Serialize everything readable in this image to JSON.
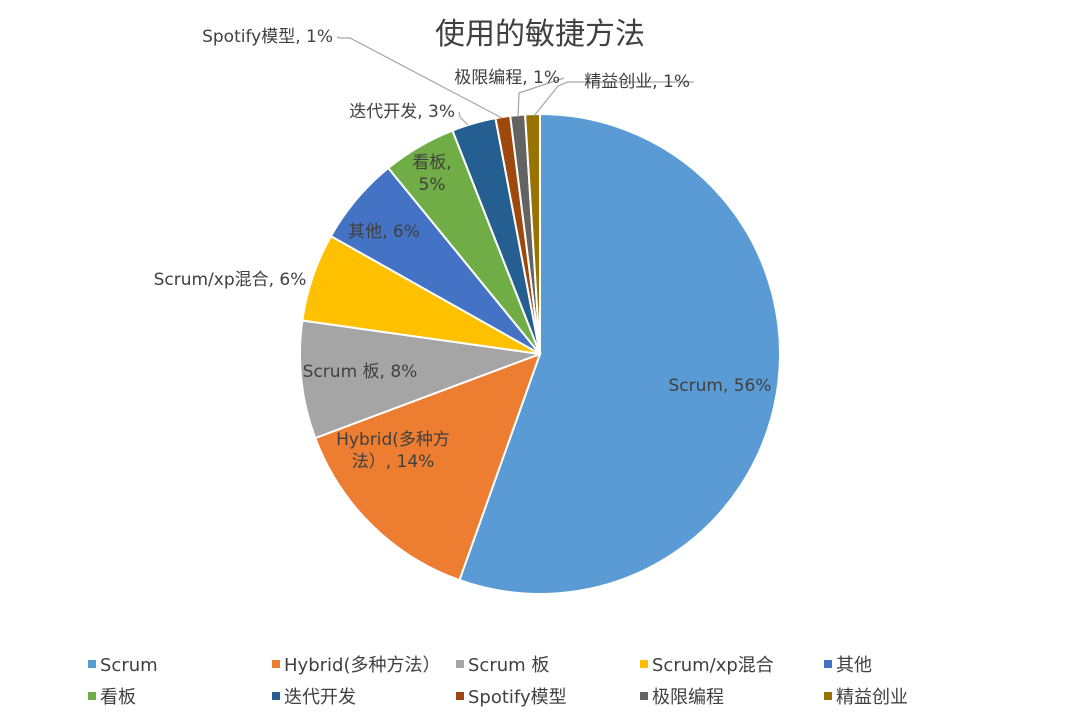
{
  "chart_data": {
    "type": "pie",
    "title": "使用的敏捷方法",
    "legend_position": "bottom",
    "slices": [
      {
        "name": "Scrum",
        "value": 56,
        "label_name": "Scrum",
        "label_value": "56%",
        "color": "#5b9bd5"
      },
      {
        "name": "Hybrid(多种方法）",
        "value": 14,
        "label_name": "Hybrid(多种方法）",
        "label_value": "14%",
        "color": "#ed7d31"
      },
      {
        "name": "Scrum 板",
        "value": 8,
        "label_name": "Scrum 板",
        "label_value": "8%",
        "color": "#a5a5a5"
      },
      {
        "name": "Scrum/xp混合",
        "value": 6,
        "label_name": "Scrum/xp混合",
        "label_value": "6%",
        "color": "#ffc000"
      },
      {
        "name": "其他",
        "value": 6,
        "label_name": "其他",
        "label_value": "6%",
        "color": "#4472c4"
      },
      {
        "name": "看板",
        "value": 5,
        "label_name": "看板",
        "label_value": "5%",
        "color": "#70ad47"
      },
      {
        "name": "迭代开发",
        "value": 3,
        "label_name": "迭代开发",
        "label_value": "3%",
        "color": "#255e91"
      },
      {
        "name": "Spotify模型",
        "value": 1,
        "label_name": "Spotify模型",
        "label_value": "1%",
        "color": "#9e480e"
      },
      {
        "name": "极限编程",
        "value": 1,
        "label_name": "极限编程",
        "label_value": "1%",
        "color": "#636363"
      },
      {
        "name": "精益创业",
        "value": 1,
        "label_name": "精益创业",
        "label_value": "1%",
        "color": "#997300"
      }
    ]
  }
}
